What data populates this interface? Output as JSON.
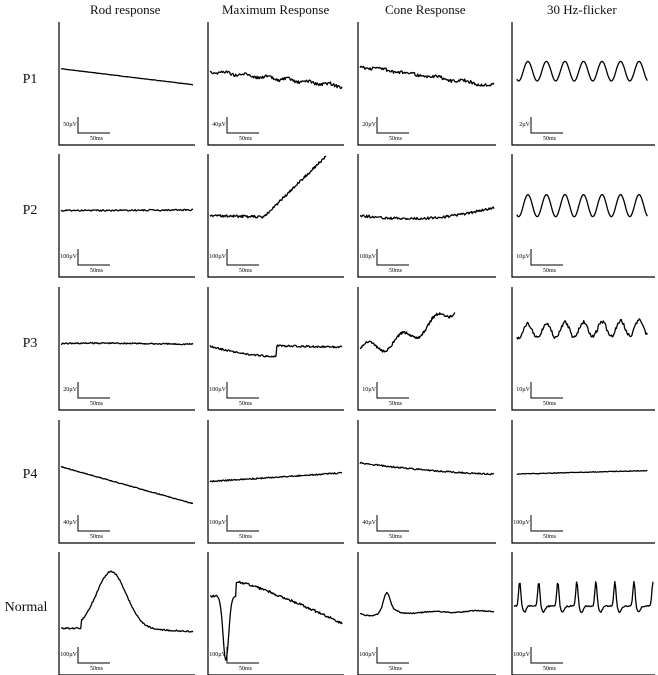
{
  "columns": [
    "Rod response",
    "Maximum Response",
    "Cone Response",
    "30 Hz-flicker"
  ],
  "rows": [
    "P1",
    "P2",
    "P3",
    "P4",
    "Normal"
  ],
  "time_scale_label": "50ms",
  "amplitude_scales": [
    [
      "50µV",
      "40µV",
      "20µV",
      "2µV"
    ],
    [
      "100µV",
      "100µV",
      "100µV",
      "10µV"
    ],
    [
      "20µV",
      "100µV",
      "10µV",
      "10µV"
    ],
    [
      "40µV",
      "100µV",
      "40µV",
      "100µV"
    ],
    [
      "100µV",
      "100µV",
      "100µV",
      "100µV"
    ]
  ]
}
